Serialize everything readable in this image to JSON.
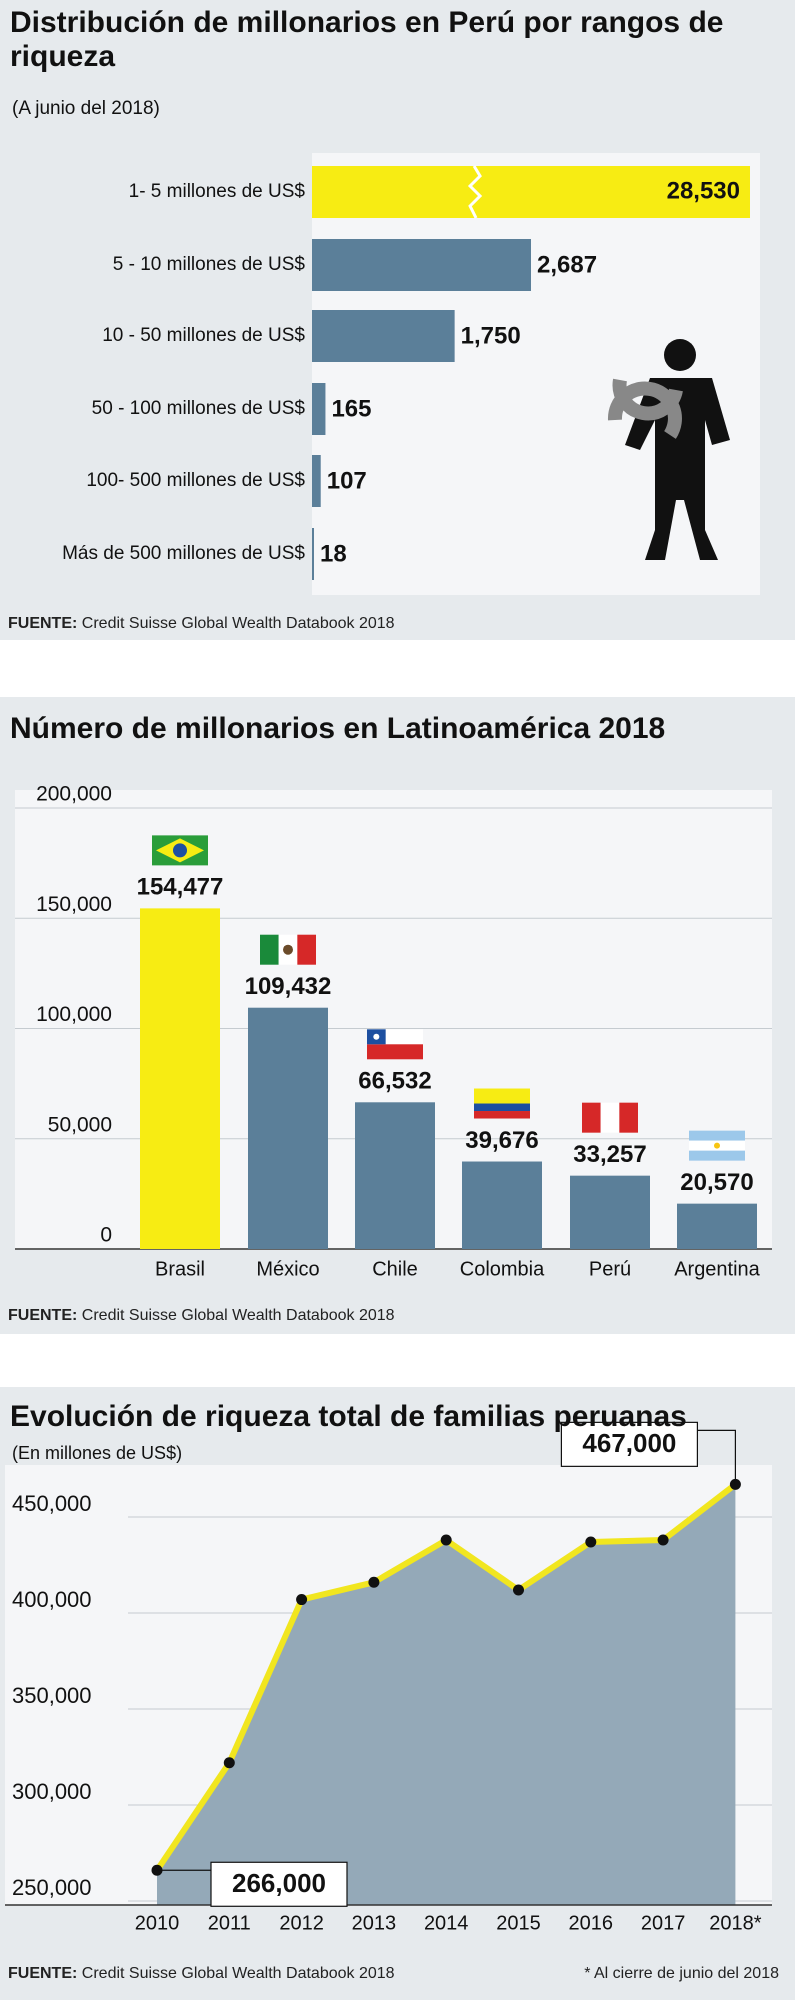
{
  "chart_data": [
    {
      "type": "hbar",
      "title": "Distribución de millonarios en Perú por rangos de riqueza",
      "subtitle": "(A junio del 2018)",
      "categories": [
        "1- 5 millones de US$",
        "5 - 10 millones de US$",
        "10 - 50 millones de US$",
        "50 - 100 millones de US$",
        "100- 500 millones de US$",
        "Más de 500 millones de US$"
      ],
      "values": [
        28530,
        2687,
        1750,
        165,
        107,
        18
      ],
      "value_labels": [
        "28,530",
        "2,687",
        "1,750",
        "165",
        "107",
        "18"
      ],
      "colors": [
        "#f7ec13",
        "#5b7f99",
        "#5b7f99",
        "#5b7f99",
        "#5b7f99",
        "#5b7f99"
      ],
      "source_label": "FUENTE:",
      "source": "Credit Suisse Global Wealth Databook 2018"
    },
    {
      "type": "bar",
      "title": "Número de millonarios en Latinoamérica 2018",
      "categories": [
        "Brasil",
        "México",
        "Chile",
        "Colombia",
        "Perú",
        "Argentina"
      ],
      "values": [
        154477,
        109432,
        66532,
        39676,
        33257,
        20570
      ],
      "value_labels": [
        "154,477",
        "109,432",
        "66,532",
        "39,676",
        "33,257",
        "20,570"
      ],
      "colors": [
        "#f7ec13",
        "#5b7f99",
        "#5b7f99",
        "#5b7f99",
        "#5b7f99",
        "#5b7f99"
      ],
      "ylim": [
        0,
        200000
      ],
      "yticks": [
        0,
        {
          "value": 50000,
          "label": "50,000"
        },
        {
          "value": 100000,
          "label": "100,000"
        },
        {
          "value": 150000,
          "label": "150,000"
        },
        {
          "value": 200000,
          "label": "200,000"
        }
      ],
      "grid": true,
      "source_label": "FUENTE:",
      "source": "Credit Suisse Global Wealth Databook 2018"
    },
    {
      "type": "area",
      "title": "Evolución de riqueza total de familias peruanas",
      "subtitle": "(En millones de US$)",
      "categories": [
        "2010",
        "2011",
        "2012",
        "2013",
        "2014",
        "2015",
        "2016",
        "2017",
        "2018*"
      ],
      "values": [
        266000,
        322000,
        407000,
        416000,
        438000,
        412000,
        437000,
        438000,
        467000
      ],
      "value_labels": [
        "266,000",
        null,
        null,
        null,
        null,
        null,
        null,
        null,
        "467,000"
      ],
      "color": "#94a9b8",
      "line_color": "#f1e61f",
      "ylim": [
        250000,
        475000
      ],
      "yticks": [
        {
          "value": 250000,
          "label": "250,000"
        },
        {
          "value": 300000,
          "label": "300,000"
        },
        {
          "value": 350000,
          "label": "350,000"
        },
        {
          "value": 400000,
          "label": "400,000"
        },
        {
          "value": 450000,
          "label": "450,000"
        }
      ],
      "grid": true,
      "source_label": "FUENTE:",
      "source": "Credit Suisse Global Wealth Databook 2018",
      "note": "* Al cierre de junio del 2018"
    }
  ]
}
